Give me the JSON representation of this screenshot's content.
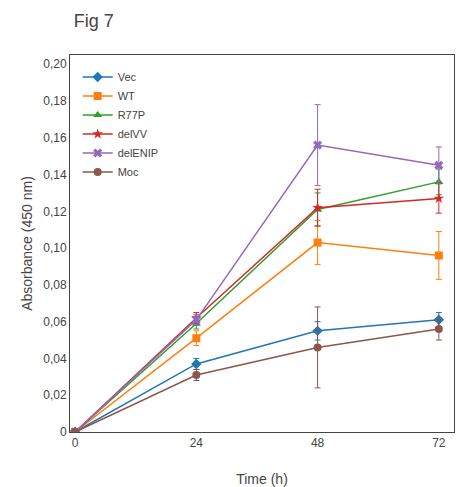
{
  "chart_data": {
    "type": "line",
    "title": "Fig 7",
    "xlabel": "Time (h)",
    "ylabel": "Absorbance (450 nm)",
    "x": [
      0,
      24,
      48,
      72
    ],
    "series": [
      {
        "name": "Vec",
        "values": [
          0.0,
          0.037,
          0.055,
          0.061
        ],
        "yerr": [
          0.0,
          0.003,
          0.005,
          0.004
        ],
        "marker": "diamond"
      },
      {
        "name": "WT",
        "values": [
          0.0,
          0.051,
          0.103,
          0.096
        ],
        "yerr": [
          0.0,
          0.004,
          0.012,
          0.013
        ],
        "marker": "square"
      },
      {
        "name": "R77P",
        "values": [
          0.0,
          0.059,
          0.121,
          0.136
        ],
        "yerr": [
          0.0,
          0.003,
          0.009,
          0.007
        ],
        "marker": "triangle-up"
      },
      {
        "name": "delVV",
        "values": [
          0.0,
          0.062,
          0.122,
          0.127
        ],
        "yerr": [
          0.0,
          0.003,
          0.01,
          0.008
        ],
        "marker": "star"
      },
      {
        "name": "delENIP",
        "values": [
          0.0,
          0.061,
          0.156,
          0.145
        ],
        "yerr": [
          0.0,
          0.003,
          0.022,
          0.01
        ],
        "marker": "x"
      },
      {
        "name": "Moc",
        "values": [
          0.0,
          0.031,
          0.046,
          0.056
        ],
        "yerr": [
          0.0,
          0.003,
          0.022,
          0.006
        ],
        "marker": "circle"
      }
    ],
    "xlim": [
      -1,
      75
    ],
    "xticks": [
      0,
      24,
      48,
      72
    ],
    "ylim": [
      0.0,
      0.205
    ],
    "yticks": [
      0,
      {
        "value": 0.02,
        "label": "0,02"
      },
      {
        "value": 0.04,
        "label": "0,04"
      },
      {
        "value": 0.06,
        "label": "0,06"
      },
      {
        "value": 0.08,
        "label": "0,08"
      },
      {
        "value": 0.1,
        "label": "0,10"
      },
      {
        "value": 0.12,
        "label": "0,12"
      },
      {
        "value": 0.14,
        "label": "0,14"
      },
      {
        "value": 0.16,
        "label": "0,16"
      },
      {
        "value": 0.18,
        "label": "0,18"
      },
      {
        "value": 0.2,
        "label": "0,20"
      }
    ],
    "grid": false,
    "legend": "upper left"
  }
}
